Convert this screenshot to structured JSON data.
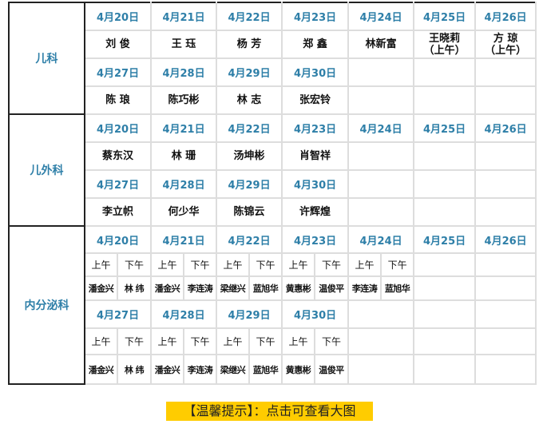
{
  "departments": [
    {
      "name": "儿科",
      "weeks": [
        {
          "dates": [
            "4月20日",
            "4月21日",
            "4月22日",
            "4月23日",
            "4月24日",
            "4月25日",
            "4月26日"
          ],
          "doctors": [
            "刘 俊",
            "王 珏",
            "杨 芳",
            "郑 鑫",
            "林新富",
            "王晓莉\n（上午）",
            "方 琼\n（上午）"
          ]
        },
        {
          "dates": [
            "4月27日",
            "4月28日",
            "4月29日",
            "4月30日",
            "",
            "",
            ""
          ],
          "doctors": [
            "陈 琅",
            "陈巧彬",
            "林 志",
            "张宏铃",
            "",
            "",
            ""
          ]
        }
      ]
    },
    {
      "name": "儿外科",
      "weeks": [
        {
          "dates": [
            "4月20日",
            "4月21日",
            "4月22日",
            "4月23日",
            "4月24日",
            "4月25日",
            "4月26日"
          ],
          "doctors": [
            "蔡东汉",
            "林 珊",
            "汤坤彬",
            "肖智祥",
            "",
            "",
            ""
          ]
        },
        {
          "dates": [
            "4月27日",
            "4月28日",
            "4月29日",
            "4月30日",
            "",
            "",
            ""
          ],
          "doctors": [
            "李立帜",
            "何少华",
            "陈锦云",
            "许辉煌",
            "",
            "",
            ""
          ]
        }
      ]
    },
    {
      "name": "内分泌科",
      "weeks": [
        {
          "dates": [
            "4月20日",
            "4月21日",
            "4月22日",
            "4月23日",
            "4月24日",
            "4月25日",
            "4月26日"
          ],
          "shifts": [
            [
              "上午",
              "下午"
            ],
            [
              "上午",
              "下午"
            ],
            [
              "上午",
              "下午"
            ],
            [
              "上午",
              "下午"
            ],
            [
              "上午",
              "下午"
            ],
            null,
            null
          ],
          "doctors": [
            [
              "潘金兴",
              "林 纬"
            ],
            [
              "潘金兴",
              "李连涛"
            ],
            [
              "梁继兴",
              "蓝旭华"
            ],
            [
              "黄惠彬",
              "温俊平"
            ],
            [
              "李连涛",
              "蓝旭华"
            ],
            null,
            null
          ]
        },
        {
          "dates": [
            "4月27日",
            "4月28日",
            "4月29日",
            "4月30日",
            "",
            "",
            ""
          ],
          "shifts": [
            [
              "上午",
              "下午"
            ],
            [
              "上午",
              "下午"
            ],
            [
              "上午",
              "下午"
            ],
            [
              "上午",
              "下午"
            ],
            null,
            null,
            null
          ],
          "doctors": [
            [
              "潘金兴",
              "林 纬"
            ],
            [
              "潘金兴",
              "李连涛"
            ],
            [
              "梁继兴",
              "蓝旭华"
            ],
            [
              "黄惠彬",
              "温俊平"
            ],
            null,
            null,
            null
          ]
        }
      ]
    }
  ],
  "tip": "【温馨提示】：点击可查看大图",
  "colors": {
    "date_text": "#2e7fa8",
    "tip_background": "#ffcc00"
  }
}
